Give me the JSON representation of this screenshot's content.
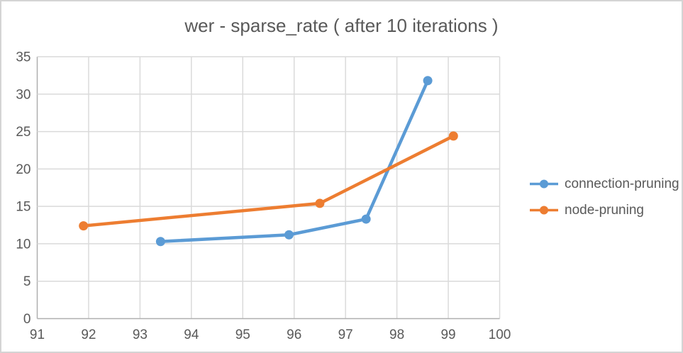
{
  "title": "wer - sparse_rate ( after 10 iterations )",
  "chart_data": {
    "type": "line",
    "title": "wer - sparse_rate ( after 10 iterations )",
    "xlabel": "",
    "ylabel": "",
    "xlim": [
      91,
      100
    ],
    "ylim": [
      0,
      35
    ],
    "x_ticks": [
      91,
      92,
      93,
      94,
      95,
      96,
      97,
      98,
      99,
      100
    ],
    "y_ticks": [
      0,
      5,
      10,
      15,
      20,
      25,
      30,
      35
    ],
    "grid": true,
    "legend_position": "right",
    "series": [
      {
        "name": "connection-pruning",
        "color": "#5B9BD5",
        "points": [
          [
            93.4,
            10.3
          ],
          [
            95.9,
            11.2
          ],
          [
            97.4,
            13.3
          ],
          [
            98.6,
            31.8
          ]
        ]
      },
      {
        "name": "node-pruning",
        "color": "#ED7D31",
        "points": [
          [
            91.9,
            12.4
          ],
          [
            96.5,
            15.4
          ],
          [
            99.1,
            24.4
          ]
        ]
      }
    ],
    "styles": {
      "gridline_color": "#DADADA",
      "axis_line_color": "#AFAFAF",
      "text_color": "#595959",
      "background": "#FFFFFF",
      "border_color": "#D4D4D4"
    }
  }
}
